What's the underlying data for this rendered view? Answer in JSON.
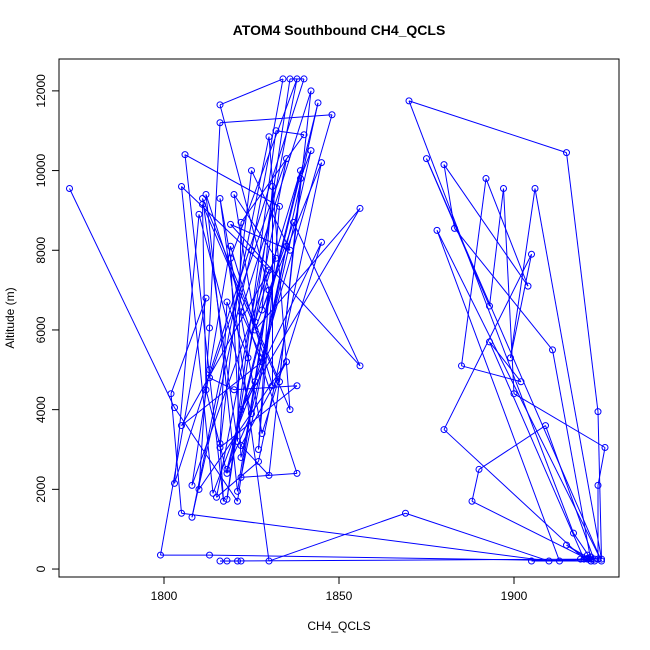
{
  "chart_data": {
    "type": "line",
    "title": "ATOM4 Southbound CH4_QCLS",
    "xlabel": "CH4_QCLS",
    "ylabel": "Altitude (m)",
    "xlim": [
      1770,
      1930
    ],
    "ylim": [
      -200,
      12800
    ],
    "xticks": [
      1800,
      1850,
      1900
    ],
    "yticks": [
      0,
      2000,
      4000,
      6000,
      8000,
      10000,
      12000
    ],
    "grid": false,
    "legend": "none",
    "series_color": "#0000ff",
    "marker": "open-circle",
    "x": [
      1773,
      1803,
      1821,
      1830,
      1816,
      1834,
      1825,
      1808,
      1830,
      1836,
      1811,
      1812,
      1818,
      1844,
      1828,
      1822,
      1842,
      1830,
      1822,
      1835,
      1810,
      1813,
      1816,
      1848,
      1826,
      1814,
      1805,
      1830,
      1808,
      1813,
      1819,
      1831,
      1831,
      1828,
      1845,
      1827,
      1815,
      1838,
      1819,
      1822,
      1842,
      1839,
      1833,
      1811,
      1821,
      1822,
      1840,
      1832,
      1818,
      1836,
      1840,
      1803,
      1810,
      1825,
      1818,
      1839,
      1826,
      1820,
      1832,
      1805,
      1828,
      1835,
      1822,
      1838,
      1812,
      1821,
      1830,
      1827,
      1833,
      1806,
      1817,
      1816,
      1818,
      1824,
      1835,
      1813,
      1820,
      1838,
      1816,
      1825,
      1836,
      1819,
      1856,
      1837,
      1826,
      1856,
      1822,
      1845,
      1828,
      1816,
      1830,
      1869,
      1910,
      1805,
      1802,
      1812,
      1799,
      1813,
      1922,
      1915,
      1922,
      1917,
      1870,
      1915,
      1924,
      1925,
      1906,
      1899,
      1905,
      1880,
      1920,
      1893,
      1902,
      1885,
      1892,
      1904,
      1880,
      1883,
      1911,
      1922,
      1919,
      1921,
      1922,
      1924,
      1924,
      1926,
      1900,
      1897,
      1893,
      1875,
      1925,
      1878,
      1913,
      1921,
      1888,
      1890,
      1909,
      1923,
      1905,
      1923,
      1816,
      1818,
      1821,
      1822
    ],
    "y": [
      9550,
      4050,
      1700,
      7000,
      11650,
      12300,
      8000,
      1300,
      10850,
      4000,
      9150,
      4500,
      2400,
      11700,
      5300,
      6450,
      12000,
      2350,
      3100,
      5200,
      2000,
      6050,
      11200,
      11400,
      4700,
      1900,
      9600,
      7500,
      2100,
      5000,
      8100,
      4600,
      9600,
      6500,
      10200,
      2700,
      1800,
      12300,
      7800,
      2800,
      10500,
      9800,
      4700,
      9300,
      3200,
      8700,
      10900,
      11000,
      1750,
      12300,
      12300,
      2150,
      8900,
      3900,
      2500,
      10000,
      6200,
      9400,
      7800,
      3600,
      5200,
      8100,
      2300,
      2400,
      9400,
      1950,
      7000,
      3000,
      9100,
      10400,
      1700,
      3150,
      6700,
      5300,
      10300,
      4800,
      4500,
      4600,
      3050,
      10000,
      8000,
      8650,
      5100,
      8700,
      6000,
      9050,
      4000,
      8200,
      3400,
      9300,
      200,
      1400,
      200,
      1400,
      4400,
      6800,
      350,
      350,
      200,
      600,
      250,
      900,
      11750,
      10450,
      3950,
      250,
      9550,
      5300,
      7900,
      3500,
      250,
      5700,
      4700,
      5100,
      9800,
      7100,
      10150,
      8550,
      5500,
      200,
      250,
      350,
      300,
      250,
      2100,
      3050,
      4400,
      9550,
      6600,
      10300,
      200,
      8500,
      200,
      250,
      1700,
      2500,
      3600,
      200,
      200,
      250,
      200,
      200,
      200,
      200
    ]
  }
}
